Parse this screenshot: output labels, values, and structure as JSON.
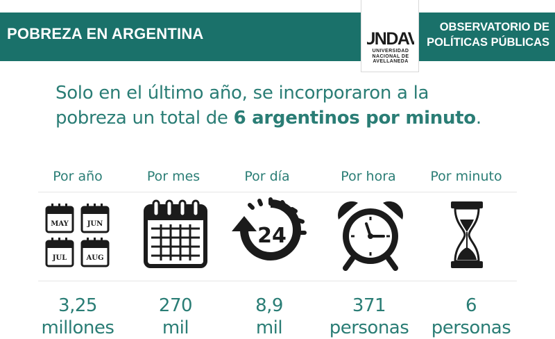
{
  "header": {
    "title": "POBREZA EN ARGENTINA",
    "logo": {
      "mark": "UNDAV",
      "line1": "UNIVERSIDAD",
      "line2": "NACIONAL DE",
      "line3": "AVELLANEDA"
    },
    "observatory_line1": "OBSERVATORIO DE",
    "observatory_line2": "POLÍTICAS PÚBLICAS"
  },
  "headline": {
    "line1": "Solo en el último año, se incorporaron a la",
    "line2_prefix": "pobreza un total de ",
    "line2_bold": "6 argentinos por minuto",
    "line2_suffix": "."
  },
  "columns": [
    {
      "label": "Por año",
      "value_line1": "3,25",
      "value_line2": "millones",
      "icon": "calendar-months-icon",
      "months": [
        "MAY",
        "JUN",
        "JUL",
        "AUG"
      ]
    },
    {
      "label": "Por mes",
      "value_line1": "270",
      "value_line2": "mil",
      "icon": "calendar-icon"
    },
    {
      "label": "Por día",
      "value_line1": "8,9",
      "value_line2": "mil",
      "icon": "24-hour-icon",
      "icon_text": "24"
    },
    {
      "label": "Por hora",
      "value_line1": "371",
      "value_line2": "personas",
      "icon": "alarm-clock-icon"
    },
    {
      "label": "Por minuto",
      "value_line1": "6",
      "value_line2": "personas",
      "icon": "hourglass-icon"
    }
  ],
  "colors": {
    "brand_teal": "#1a716a",
    "text_teal": "#2a7d75",
    "icon_black": "#1b1b1b"
  }
}
